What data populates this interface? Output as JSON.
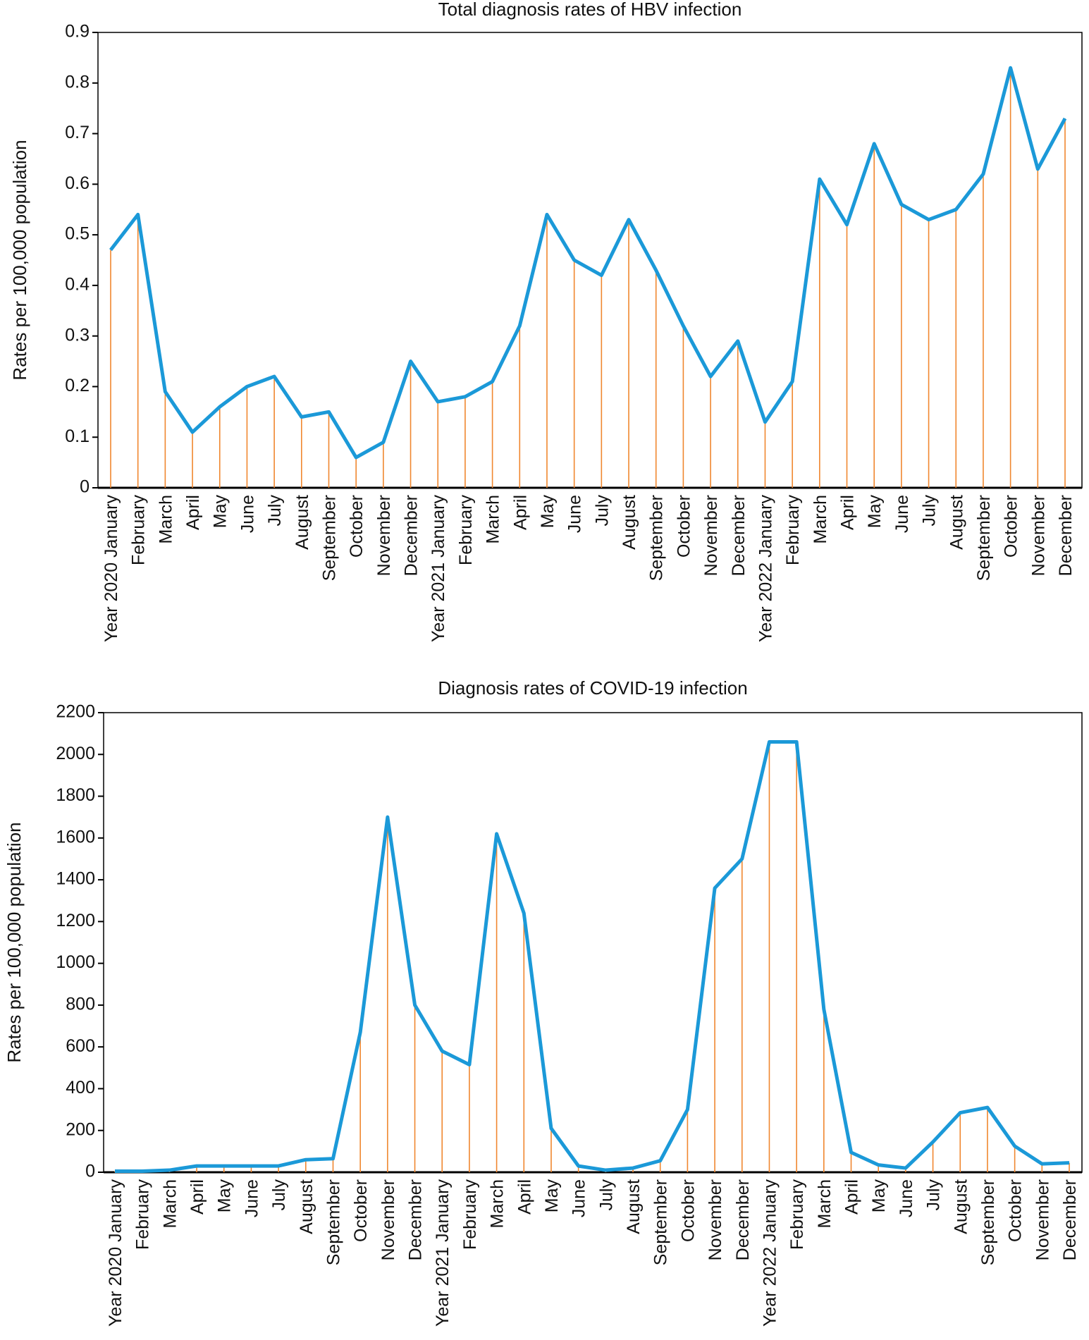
{
  "colors": {
    "line": "#1b99d8",
    "drop": "#f0872f",
    "axis": "#000000"
  },
  "chart_data": [
    {
      "type": "line",
      "title": "Total diagnosis rates of HBV infection",
      "ylabel": "Rates per 100,000 population",
      "ylim": [
        0,
        0.9
      ],
      "yticks": [
        "0",
        "0.1",
        "0.2",
        "0.3",
        "0.4",
        "0.5",
        "0.6",
        "0.7",
        "0.8",
        "0.9"
      ],
      "categories": [
        "Year 2020  January",
        "February",
        "March",
        "April",
        "May",
        "June",
        "July",
        "August",
        "September",
        "October",
        "November",
        "December",
        "Year 2021  January",
        "February",
        "March",
        "April",
        "May",
        "June",
        "July",
        "August",
        "September",
        "October",
        "November",
        "December",
        "Year 2022  January",
        "February",
        "March",
        "April",
        "May",
        "June",
        "July",
        "August",
        "September",
        "October",
        "November",
        "December"
      ],
      "values": [
        0.47,
        0.54,
        0.19,
        0.11,
        0.16,
        0.2,
        0.22,
        0.14,
        0.15,
        0.06,
        0.09,
        0.25,
        0.17,
        0.18,
        0.21,
        0.32,
        0.54,
        0.45,
        0.42,
        0.53,
        0.43,
        0.32,
        0.22,
        0.29,
        0.13,
        0.21,
        0.61,
        0.52,
        0.68,
        0.56,
        0.53,
        0.55,
        0.62,
        0.83,
        0.63,
        0.73
      ],
      "grid": false
    },
    {
      "type": "line",
      "title": "Diagnosis rates of COVID-19 infection",
      "ylabel": "Rates per 100,000 population",
      "ylim": [
        0,
        2200
      ],
      "yticks": [
        "0",
        "200",
        "400",
        "600",
        "800",
        "1000",
        "1200",
        "1400",
        "1600",
        "1800",
        "2000",
        "2200"
      ],
      "categories": [
        "Year 2020  January",
        "February",
        "March",
        "April",
        "May",
        "June",
        "July",
        "August",
        "September",
        "October",
        "November",
        "December",
        "Year 2021  January",
        "February",
        "March",
        "April",
        "May",
        "June",
        "July",
        "August",
        "September",
        "October",
        "November",
        "December",
        "Year 2022  January",
        "February",
        "March",
        "April",
        "May",
        "June",
        "July",
        "August",
        "September",
        "October",
        "November",
        "December"
      ],
      "values": [
        5,
        5,
        10,
        30,
        30,
        30,
        30,
        60,
        65,
        670,
        1700,
        800,
        580,
        515,
        1620,
        1240,
        210,
        30,
        10,
        20,
        55,
        300,
        1360,
        1500,
        2060,
        2060,
        780,
        95,
        35,
        20,
        145,
        285,
        310,
        125,
        40,
        45
      ],
      "grid": false
    }
  ]
}
